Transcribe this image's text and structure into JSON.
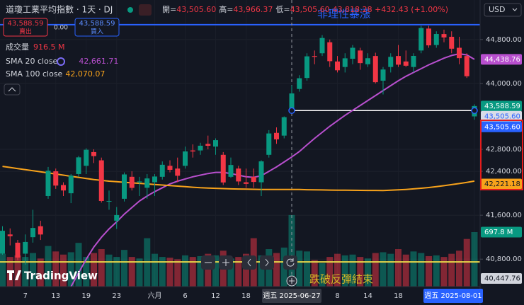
{
  "header": {
    "symbol": "道瓊工業平均指數 · 1天 · DJ",
    "ohlc": [
      {
        "label": "開=",
        "value": "43,505.60"
      },
      {
        "label": "高=",
        "value": "43,966.37"
      },
      {
        "label": "低=",
        "value": "43,505.60"
      }
    ],
    "change": "43,818.28 +432.43 (+1.00%)"
  },
  "trade": {
    "sell_price": "43,588.59",
    "sell": "賣出",
    "spread": "0.00",
    "buy_price": "43,588.59",
    "buy": "買入"
  },
  "currency": "USD",
  "brand": "TradingView",
  "chart_data": {
    "type": "candlestick",
    "categories": [
      null,
      null,
      null,
      "7",
      null,
      null,
      null,
      "13",
      null,
      null,
      null,
      "19",
      null,
      null,
      null,
      "23",
      null,
      null,
      null,
      null,
      "六月",
      null,
      null,
      null,
      "6",
      null,
      null,
      null,
      "12",
      null,
      null,
      null,
      "18",
      null,
      null,
      null,
      null,
      null,
      "週五 2025-06-27",
      null,
      null,
      null,
      null,
      null,
      "8",
      null,
      null,
      null,
      "14",
      null,
      null,
      null,
      "18",
      null,
      null,
      null,
      null,
      null,
      null,
      null,
      null,
      null,
      "週五 2025-08-01"
    ],
    "candles": [
      [
        40900,
        41400,
        40880,
        41317
      ],
      [
        41250,
        41360,
        41050,
        41218
      ],
      [
        41100,
        41150,
        40780,
        40829
      ],
      [
        40900,
        41250,
        40700,
        41113
      ],
      [
        41200,
        41700,
        41100,
        41368
      ],
      [
        41400,
        41500,
        41150,
        41249
      ],
      [
        41950,
        42480,
        41900,
        42410
      ],
      [
        42400,
        42450,
        42080,
        42140
      ],
      [
        42150,
        42200,
        41950,
        42051
      ],
      [
        42000,
        42350,
        41820,
        42322
      ],
      [
        42350,
        42680,
        42300,
        42654
      ],
      [
        42500,
        42820,
        42350,
        42792
      ],
      [
        42750,
        42800,
        42550,
        42677
      ],
      [
        42600,
        42650,
        41830,
        41860
      ],
      [
        41850,
        42050,
        41700,
        41859
      ],
      [
        41500,
        41750,
        41350,
        41603
      ],
      [
        41900,
        42380,
        41850,
        42343
      ],
      [
        42300,
        42400,
        42050,
        42098
      ],
      [
        42200,
        42300,
        41950,
        42215
      ],
      [
        42100,
        42350,
        41900,
        42270
      ],
      [
        42200,
        42350,
        41950,
        42305
      ],
      [
        42300,
        42580,
        42250,
        42519
      ],
      [
        42500,
        42600,
        42380,
        42427
      ],
      [
        42450,
        42650,
        42200,
        42319
      ],
      [
        42500,
        42850,
        42450,
        42762
      ],
      [
        42780,
        42890,
        42650,
        42761
      ],
      [
        42780,
        42920,
        42700,
        42866
      ],
      [
        42900,
        43050,
        42800,
        42865
      ],
      [
        42850,
        43000,
        42700,
        42967
      ],
      [
        42700,
        42750,
        42150,
        42197
      ],
      [
        42300,
        42650,
        42280,
        42515
      ],
      [
        42450,
        42500,
        42150,
        42215
      ],
      [
        42200,
        42450,
        42100,
        42171
      ],
      [
        42300,
        42450,
        42100,
        42206
      ],
      [
        42200,
        42600,
        41950,
        42581
      ],
      [
        42700,
        43150,
        42650,
        43089
      ],
      [
        43100,
        43200,
        42900,
        42982
      ],
      [
        43050,
        43400,
        43000,
        43386
      ],
      [
        43505.6,
        43966.37,
        43505.6,
        43818.28
      ],
      [
        43900,
        44150,
        43850,
        44095
      ],
      [
        44100,
        44550,
        44050,
        44494
      ],
      [
        44500,
        44600,
        44350,
        44484
      ],
      [
        44550,
        44880,
        44500,
        44828
      ],
      [
        44750,
        44800,
        44300,
        44406
      ],
      [
        44400,
        44500,
        44200,
        44240
      ],
      [
        44300,
        44550,
        44200,
        44458
      ],
      [
        44450,
        44700,
        44350,
        44650
      ],
      [
        44600,
        44650,
        44250,
        44371
      ],
      [
        44350,
        44550,
        44300,
        44460
      ],
      [
        44500,
        44560,
        44000,
        44023
      ],
      [
        44050,
        44300,
        43800,
        44254
      ],
      [
        44300,
        44550,
        44200,
        44484
      ],
      [
        44500,
        44700,
        44300,
        44342
      ],
      [
        44400,
        44600,
        44300,
        44323
      ],
      [
        44300,
        44550,
        44200,
        44502
      ],
      [
        44600,
        45050,
        44550,
        45010
      ],
      [
        45000,
        45050,
        44650,
        44694
      ],
      [
        44700,
        44950,
        44650,
        44901
      ],
      [
        44900,
        44980,
        44750,
        44838
      ],
      [
        44850,
        44950,
        44550,
        44633
      ],
      [
        44650,
        44850,
        44350,
        44461
      ],
      [
        44500,
        44550,
        44100,
        44131
      ],
      [
        43400,
        43620,
        43340,
        43588.59
      ]
    ],
    "up_color": "#089981",
    "down_color": "#f23645",
    "volume": {
      "name": "成交量",
      "legend_value": "916.5 M",
      "vlim": [
        0,
        3670
      ],
      "up_color": "rgba(8,153,129,0.5)",
      "down_color": "rgba(242,54,69,0.5)",
      "values": [
        420,
        380,
        400,
        380,
        430,
        360,
        520,
        450,
        410,
        440,
        560,
        380,
        430,
        480,
        410,
        380,
        470,
        380,
        360,
        620,
        420,
        380,
        370,
        350,
        400,
        380,
        390,
        420,
        400,
        460,
        360,
        380,
        420,
        620,
        400,
        480,
        430,
        500,
        916.5,
        460,
        450,
        340,
        300,
        380,
        420,
        400,
        410,
        380,
        360,
        430,
        440,
        420,
        480,
        410,
        450,
        430,
        390,
        400,
        380,
        420,
        460,
        610,
        697.8
      ],
      "label": {
        "value": 697.8,
        "label": "697.8 M",
        "color": "#089981"
      }
    },
    "series": [
      {
        "name": "SMA 20 close",
        "legend_value": "42,661.71",
        "color": "#b84fce",
        "values": [
          null,
          null,
          null,
          null,
          null,
          null,
          null,
          null,
          null,
          40300,
          40550,
          40800,
          41020,
          41200,
          41350,
          41480,
          41620,
          41740,
          41860,
          41950,
          42030,
          42100,
          42170,
          42220,
          42260,
          42300,
          42330,
          42360,
          42380,
          42380,
          42360,
          42330,
          42300,
          42290,
          42320,
          42400,
          42480,
          42570,
          42661.71,
          42760,
          42880,
          43000,
          43110,
          43220,
          43320,
          43420,
          43510,
          43600,
          43690,
          43780,
          43870,
          43960,
          44050,
          44130,
          44200,
          44270,
          44340,
          44400,
          44460,
          44510,
          44540,
          44520,
          44438.76
        ]
      },
      {
        "name": "SMA 100 close",
        "legend_value": "42,070.07",
        "color": "#f7a21b",
        "values": [
          42490,
          42470,
          42450,
          42430,
          42410,
          42390,
          42370,
          42350,
          42330,
          42310,
          42290,
          42270,
          42250,
          42235,
          42220,
          42210,
          42200,
          42190,
          42180,
          42170,
          42160,
          42150,
          42140,
          42130,
          42120,
          42110,
          42100,
          42095,
          42090,
          42085,
          42080,
          42078,
          42075,
          42072,
          42070,
          42070,
          42070,
          42070,
          42070.07,
          42068,
          42065,
          42062,
          42060,
          42058,
          42056,
          42055,
          42054,
          42053,
          42052,
          42051,
          42050,
          42055,
          42062,
          42070,
          42080,
          42092,
          42105,
          42120,
          42138,
          42157,
          42177,
          42198,
          42221.18
        ]
      }
    ],
    "ylim": [
      40300,
      45520
    ],
    "yticks": [
      {
        "value": 44800,
        "label": "44,800.00"
      },
      {
        "value": 44000,
        "label": "44,000.00"
      },
      {
        "value": 42800,
        "label": "42,800.00"
      },
      {
        "value": 42400,
        "label": "42,400.00"
      },
      {
        "value": 41600,
        "label": "41,600.00"
      },
      {
        "value": 40800,
        "label": "40,800.00"
      }
    ],
    "grid": true,
    "price_labels": [
      {
        "value": 44438.76,
        "label": "44,438.76",
        "color": "#b84fce",
        "text_color": "#ffffff"
      },
      {
        "value": 43588.59,
        "label": "43,588.59",
        "color": "#089981",
        "text_color": "#ffffff"
      },
      {
        "value": 43505.6,
        "label": "43,505.60",
        "color": "#d9dde8",
        "text_color": "#2962ff"
      },
      {
        "value": 43505.6,
        "label": "43,505.60",
        "color": "#2962ff",
        "text_color": "#ffffff"
      },
      {
        "value": 42221.18,
        "label": "42,221.18",
        "color": "#f7a21b",
        "text_color": "#131722"
      },
      {
        "value": 40447.76,
        "label": "40,447.76",
        "color": "#d1d4dc",
        "text_color": "#131722"
      }
    ],
    "lines": [
      {
        "value": 45070,
        "color": "#2962ff"
      },
      {
        "value": 40750,
        "color": "#e6d64a"
      },
      {
        "value": 43505.6,
        "color": "#ffffff",
        "ray": true
      }
    ],
    "crosshair": 38,
    "annotations": [
      {
        "text": "非理性暴漲",
        "color": "#2962ff"
      },
      {
        "text": "跌破反彈結束",
        "color": "#d4b826"
      }
    ]
  }
}
